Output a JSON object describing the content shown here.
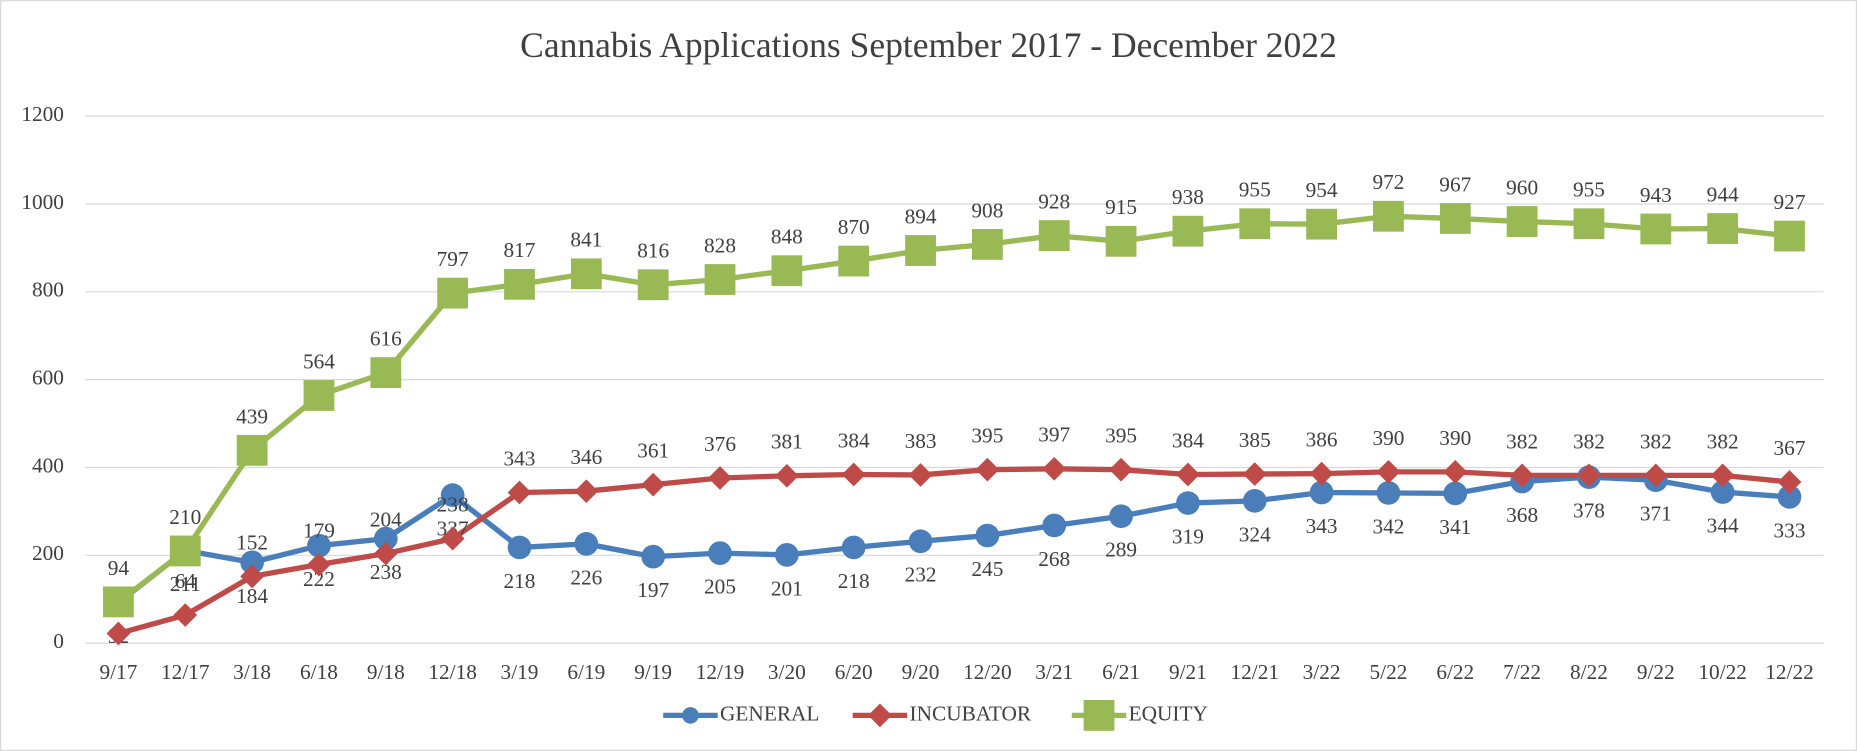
{
  "chart_data": {
    "type": "line",
    "title": "Cannabis Applications September 2017 - December  2022",
    "categories": [
      "9/17",
      "12/17",
      "3/18",
      "6/18",
      "9/18",
      "12/18",
      "3/19",
      "6/19",
      "9/19",
      "12/19",
      "3/20",
      "6/20",
      "9/20",
      "12/20",
      "3/21",
      "6/21",
      "9/21",
      "12/21",
      "3/22",
      "5/22",
      "6/22",
      "7/22",
      "8/22",
      "9/22",
      "10/22",
      "12/22"
    ],
    "series": [
      {
        "name": "GENERAL",
        "color": "#4a7ebb",
        "values": [
          92,
          211,
          184,
          222,
          238,
          337,
          218,
          226,
          197,
          205,
          201,
          218,
          232,
          245,
          268,
          289,
          319,
          324,
          343,
          342,
          341,
          368,
          378,
          371,
          344,
          333
        ]
      },
      {
        "name": "INCUBATOR",
        "color": "#be4b48",
        "values": [
          22,
          64,
          152,
          179,
          204,
          238,
          343,
          346,
          361,
          376,
          381,
          384,
          383,
          395,
          397,
          395,
          384,
          385,
          386,
          390,
          390,
          382,
          382,
          382,
          382,
          367
        ]
      },
      {
        "name": "EQUITY",
        "color": "#98b954",
        "values": [
          94,
          210,
          439,
          564,
          616,
          797,
          817,
          841,
          816,
          828,
          848,
          870,
          894,
          908,
          928,
          915,
          938,
          955,
          954,
          972,
          967,
          960,
          955,
          943,
          944,
          927
        ]
      }
    ],
    "ylim": [
      0,
      1200
    ],
    "yticks": [
      0,
      200,
      400,
      600,
      800,
      1000,
      1200
    ],
    "grid": true,
    "legend": "bottom"
  }
}
